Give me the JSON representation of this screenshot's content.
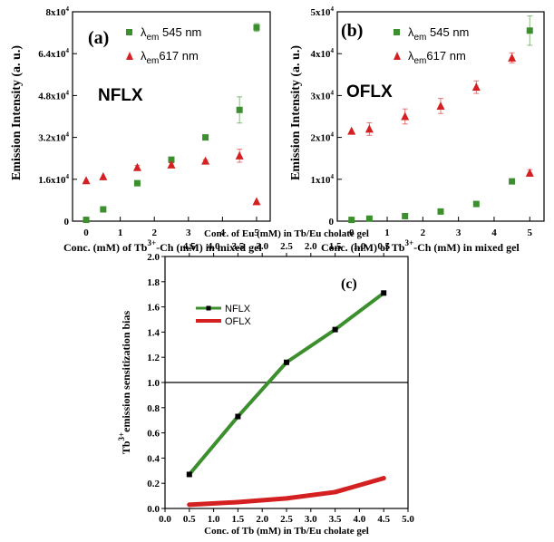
{
  "colors": {
    "green": "#3c8f2d",
    "red": "#d42020",
    "axis": "#000000",
    "threshold": "#000000"
  },
  "icons": {
    "square_marker": "square",
    "triangle_marker": "triangle-up"
  },
  "chart_data": [
    {
      "panel": "a",
      "panel_label": "(a)",
      "annotation": "NFLX",
      "type": "scatter",
      "title": "",
      "xlabel_prefix": "Conc. (mM) of Tb",
      "xlabel_sup": "3+",
      "xlabel_suffix": "-Ch (mM) in mixed gel",
      "ylabel": "Emission Intensity  (a. u.)",
      "xlim": [
        -0.4,
        5.4
      ],
      "ylim": [
        0,
        80000
      ],
      "x_ticks": [
        0,
        1,
        2,
        3,
        4,
        5
      ],
      "x_tick_labels": [
        "0",
        "1",
        "2",
        "3",
        "4",
        "5"
      ],
      "y_ticks": [
        0,
        16000,
        32000,
        48000,
        64000,
        80000
      ],
      "y_tick_labels": [
        {
          "mant": "0",
          "exp": ""
        },
        {
          "mant": "1.6x10",
          "exp": "4"
        },
        {
          "mant": "3.2x10",
          "exp": "4"
        },
        {
          "mant": "4.8x10",
          "exp": "4"
        },
        {
          "mant": "6.4x10",
          "exp": "4"
        },
        {
          "mant": "8x10",
          "exp": "4"
        }
      ],
      "grid": false,
      "legend_position": "top-center",
      "series": [
        {
          "name": "λem 545 nm",
          "lambda": "λ",
          "sub": "em",
          "suffix": " 545 nm",
          "marker": "square",
          "color": "#3c8f2d",
          "x": [
            0,
            0.5,
            1.5,
            2.5,
            3.5,
            4.5,
            5
          ],
          "y": [
            500,
            4500,
            14500,
            23500,
            32000,
            42500,
            74000
          ],
          "err": [
            0,
            0,
            800,
            800,
            800,
            5000,
            1500
          ]
        },
        {
          "name": "λem617 nm",
          "lambda": "λ",
          "sub": "em",
          "suffix": "617 nm",
          "marker": "triangle",
          "color": "#d42020",
          "x": [
            0,
            0.5,
            1.5,
            2.5,
            3.5,
            4.5,
            5
          ],
          "y": [
            15500,
            17000,
            20500,
            21500,
            23000,
            25000,
            7500
          ],
          "err": [
            0,
            0,
            800,
            800,
            500,
            2500,
            0
          ]
        }
      ]
    },
    {
      "panel": "b",
      "panel_label": "(b)",
      "annotation": "OFLX",
      "type": "scatter",
      "title": "",
      "xlabel_prefix": "Conc. (mM) of Tb",
      "xlabel_sup": "3+",
      "xlabel_suffix": "-Ch (mM) in mixed gel",
      "ylabel": "Emission Intensity  (a. u.)",
      "xlim": [
        -0.4,
        5.4
      ],
      "ylim": [
        0,
        50000
      ],
      "x_ticks": [
        0,
        1,
        2,
        3,
        4,
        5
      ],
      "x_tick_labels": [
        "0",
        "1",
        "2",
        "3",
        "4",
        "5"
      ],
      "y_ticks": [
        0,
        10000,
        20000,
        30000,
        40000,
        50000
      ],
      "y_tick_labels": [
        {
          "mant": "0",
          "exp": ""
        },
        {
          "mant": "1x10",
          "exp": "4"
        },
        {
          "mant": "2x10",
          "exp": "4"
        },
        {
          "mant": "3x10",
          "exp": "4"
        },
        {
          "mant": "4x10",
          "exp": "4"
        },
        {
          "mant": "5x10",
          "exp": "4"
        }
      ],
      "grid": false,
      "legend_position": "top-center",
      "series": [
        {
          "name": "λem 545 nm",
          "lambda": "λ",
          "sub": "em",
          "suffix": " 545 nm",
          "marker": "square",
          "color": "#3c8f2d",
          "x": [
            0,
            0.5,
            1.5,
            2.5,
            3.5,
            4.5,
            5
          ],
          "y": [
            300,
            600,
            1200,
            2300,
            4100,
            9500,
            45500
          ],
          "err": [
            0,
            0,
            0,
            0,
            0,
            500,
            3500
          ]
        },
        {
          "name": "λem617 nm",
          "lambda": "λ",
          "sub": "em",
          "suffix": "617 nm",
          "marker": "triangle",
          "color": "#d42020",
          "x": [
            0,
            0.5,
            1.5,
            2.5,
            3.5,
            4.5,
            5
          ],
          "y": [
            21500,
            22000,
            25000,
            27500,
            32000,
            39000,
            11500
          ],
          "err": [
            0,
            1500,
            1800,
            1800,
            1500,
            1200,
            800
          ]
        }
      ]
    },
    {
      "panel": "c",
      "panel_label": "(c)",
      "type": "line",
      "title": "",
      "xlabel": "Conc. of Tb (mM) in Tb/Eu cholate gel",
      "top_xlabel": "Conc. of Eu (mM) in Tb/Eu cholate gel",
      "ylabel_prefix": "Tb",
      "ylabel_sup": "3+",
      "ylabel_suffix": "emission sensitization bias",
      "xlim": [
        0,
        5
      ],
      "ylim": [
        0,
        2
      ],
      "x_tick_labels": [
        "0.0",
        "0.5",
        "1.0",
        "1.5",
        "2.0",
        "2.5",
        "3.0",
        "3.5",
        "4.0",
        "4.5",
        "5.0"
      ],
      "y_tick_labels": [
        "0.0",
        "0.2",
        "0.4",
        "0.6",
        "0.8",
        "1.0",
        "1.2",
        "1.4",
        "1.6",
        "1.8",
        "2.0"
      ],
      "top_tick_labels": [
        "4.5",
        "4.0",
        "3.5",
        "3.0",
        "2.5",
        "2.0",
        "1.5",
        "1.0",
        "0.5"
      ],
      "top_tick_positions": [
        0.5,
        1.0,
        1.5,
        2.0,
        2.5,
        3.0,
        3.5,
        4.0,
        4.5
      ],
      "reference_line_y": 1.0,
      "grid": false,
      "legend_position": "top-left",
      "series": [
        {
          "name": "NFLX",
          "color": "#3c8f2d",
          "x": [
            0.5,
            1.5,
            2.5,
            3.5,
            4.5
          ],
          "y": [
            0.27,
            0.73,
            1.16,
            1.42,
            1.71
          ]
        },
        {
          "name": "OFLX",
          "color": "#d42020",
          "x": [
            0.5,
            1.5,
            2.5,
            3.5,
            4.5
          ],
          "y": [
            0.03,
            0.05,
            0.08,
            0.13,
            0.24
          ]
        }
      ]
    }
  ]
}
